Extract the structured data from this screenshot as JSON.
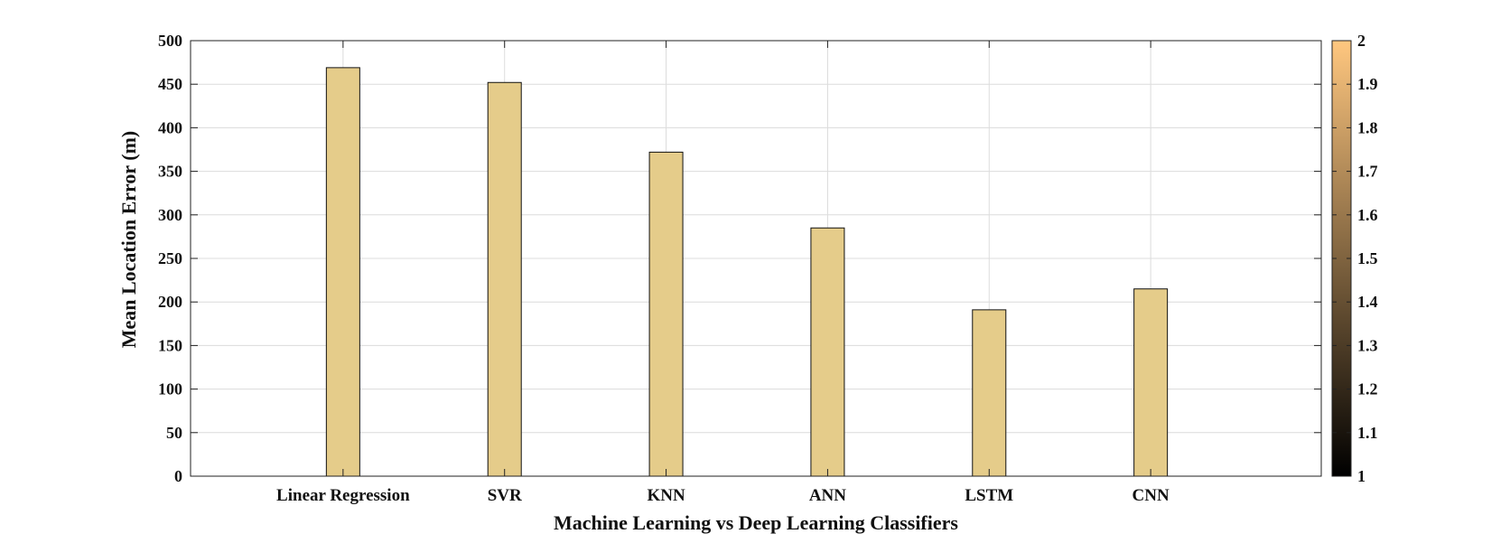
{
  "chart_data": {
    "type": "bar",
    "categories": [
      "Linear Regression",
      "SVR",
      "KNN",
      "ANN",
      "LSTM",
      "CNN"
    ],
    "values": [
      469,
      452,
      372,
      285,
      191,
      215
    ],
    "xlabel": "Machine Learning vs Deep Learning Classifiers",
    "ylabel": "Mean Location Error (m)",
    "ylim": [
      0,
      500
    ],
    "yticks": [
      0,
      50,
      100,
      150,
      200,
      250,
      300,
      350,
      400,
      450,
      500
    ],
    "grid": true,
    "bar_color": "#e5cc8a",
    "colorbar": {
      "range": [
        1,
        2
      ],
      "ticks": [
        "1",
        "1.1",
        "1.2",
        "1.3",
        "1.4",
        "1.5",
        "1.6",
        "1.7",
        "1.8",
        "1.9",
        "2"
      ],
      "colormap": "copper",
      "colors": [
        "#000000",
        "#ffc77f"
      ]
    }
  }
}
